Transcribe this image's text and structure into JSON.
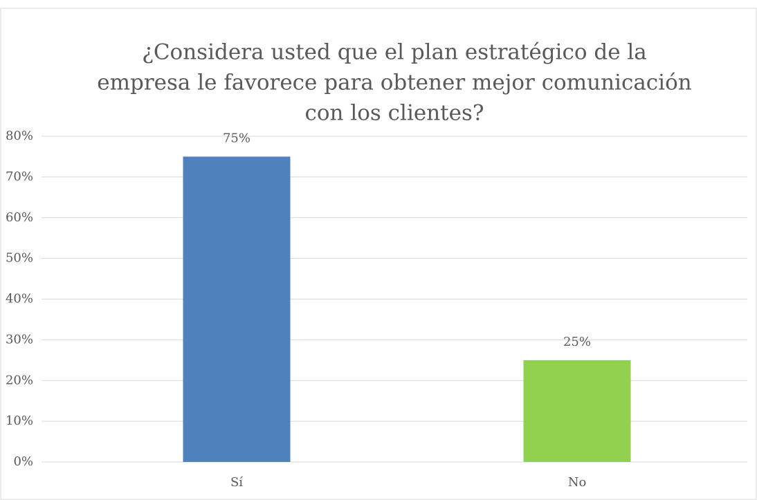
{
  "chart_data": {
    "type": "bar",
    "title": [
      "¿Considera usted que el plan estratégico de la",
      "empresa le favorece para obtener mejor comunicación",
      "con los clientes?"
    ],
    "categories": [
      "Sí",
      "No"
    ],
    "values": [
      75,
      25
    ],
    "value_labels": [
      "75%",
      "25%"
    ],
    "colors": [
      "#4f81bd",
      "#92d050"
    ],
    "ylim": [
      0,
      80
    ],
    "yticks": [
      {
        "value": 0,
        "label": "0%"
      },
      {
        "value": 10,
        "label": "10%"
      },
      {
        "value": 20,
        "label": "20%"
      },
      {
        "value": 30,
        "label": "30%"
      },
      {
        "value": 40,
        "label": "40%"
      },
      {
        "value": 50,
        "label": "50%"
      },
      {
        "value": 60,
        "label": "60%"
      },
      {
        "value": 70,
        "label": "70%"
      },
      {
        "value": 80,
        "label": "80%"
      }
    ],
    "grid": true
  }
}
